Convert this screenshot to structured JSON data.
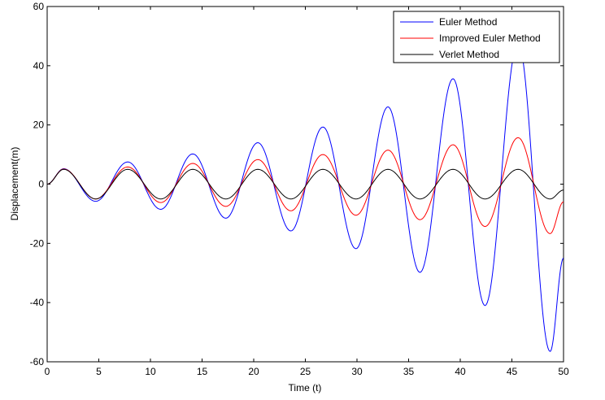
{
  "chart_data": {
    "type": "line",
    "title": "",
    "xlabel": "Time (t)",
    "ylabel": "Displacement(m)",
    "xlim": [
      0,
      50
    ],
    "ylim": [
      -60,
      60
    ],
    "xticks": [
      0,
      5,
      10,
      15,
      20,
      25,
      30,
      35,
      40,
      45,
      50
    ],
    "yticks": [
      -60,
      -40,
      -20,
      0,
      20,
      40,
      60
    ],
    "xtick_labels": [
      "0",
      "5",
      "10",
      "15",
      "20",
      "25",
      "30",
      "35",
      "40",
      "45",
      "50"
    ],
    "ytick_labels": [
      "-60",
      "-40",
      "-20",
      "0",
      "20",
      "40",
      "60"
    ],
    "grid": false,
    "legend_position": "top-right",
    "series": [
      {
        "name": "Euler Method",
        "color": "#0000ff",
        "points": [
          [
            0,
            0
          ],
          [
            1.6,
            5.2
          ],
          [
            4.7,
            -5.8
          ],
          [
            7.8,
            7.5
          ],
          [
            11.0,
            -8.5
          ],
          [
            14.1,
            10.2
          ],
          [
            17.3,
            -11.5
          ],
          [
            20.4,
            14.0
          ],
          [
            23.6,
            -15.8
          ],
          [
            26.7,
            19.3
          ],
          [
            29.9,
            -21.8
          ],
          [
            33.0,
            26.1
          ],
          [
            36.1,
            -29.8
          ],
          [
            39.3,
            35.6
          ],
          [
            42.4,
            -41.0
          ],
          [
            45.6,
            47.7
          ],
          [
            48.7,
            -56.5
          ],
          [
            50,
            -25
          ]
        ]
      },
      {
        "name": "Improved Euler Method",
        "color": "#ff0000",
        "points": [
          [
            0,
            0
          ],
          [
            1.6,
            5.1
          ],
          [
            4.7,
            -5.0
          ],
          [
            7.8,
            5.8
          ],
          [
            11.0,
            -6.2
          ],
          [
            14.1,
            7.0
          ],
          [
            17.3,
            -7.5
          ],
          [
            20.4,
            8.3
          ],
          [
            23.6,
            -9.0
          ],
          [
            26.7,
            10.0
          ],
          [
            29.9,
            -10.5
          ],
          [
            33.0,
            11.5
          ],
          [
            36.1,
            -12.0
          ],
          [
            39.3,
            13.3
          ],
          [
            42.4,
            -14.3
          ],
          [
            45.6,
            15.7
          ],
          [
            48.7,
            -16.7
          ],
          [
            50,
            -6
          ]
        ]
      },
      {
        "name": "Verlet Method",
        "color": "#000000",
        "points": [
          [
            0,
            0
          ],
          [
            1.6,
            5.0
          ],
          [
            4.7,
            -5.0
          ],
          [
            7.8,
            5.0
          ],
          [
            11.0,
            -5.0
          ],
          [
            14.1,
            5.0
          ],
          [
            17.3,
            -5.0
          ],
          [
            20.4,
            5.0
          ],
          [
            23.6,
            -5.0
          ],
          [
            26.7,
            5.0
          ],
          [
            29.9,
            -5.0
          ],
          [
            33.0,
            5.0
          ],
          [
            36.1,
            -5.0
          ],
          [
            39.3,
            5.0
          ],
          [
            42.4,
            -5.0
          ],
          [
            45.6,
            5.0
          ],
          [
            48.7,
            -5.0
          ],
          [
            50,
            -2
          ]
        ]
      }
    ]
  }
}
